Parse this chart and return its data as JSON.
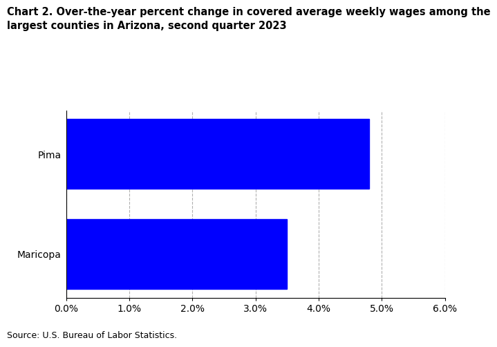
{
  "title_line1": "Chart 2. Over-the-year percent change in covered average weekly wages among the",
  "title_line2": "largest counties in Arizona, second quarter 2023",
  "categories": [
    "Maricopa",
    "Pima"
  ],
  "values": [
    3.5,
    4.8
  ],
  "bar_color": "#0000ff",
  "xlim": [
    0.0,
    0.06
  ],
  "xticks": [
    0.0,
    0.01,
    0.02,
    0.03,
    0.04,
    0.05,
    0.06
  ],
  "xtick_labels": [
    "0.0%",
    "1.0%",
    "2.0%",
    "3.0%",
    "4.0%",
    "5.0%",
    "6.0%"
  ],
  "source_text": "Source: U.S. Bureau of Labor Statistics.",
  "background_color": "#ffffff",
  "bar_height": 0.7,
  "grid_color": "#b0b0b0",
  "title_fontsize": 10.5,
  "tick_fontsize": 10,
  "source_fontsize": 9,
  "ylabel_fontsize": 10
}
